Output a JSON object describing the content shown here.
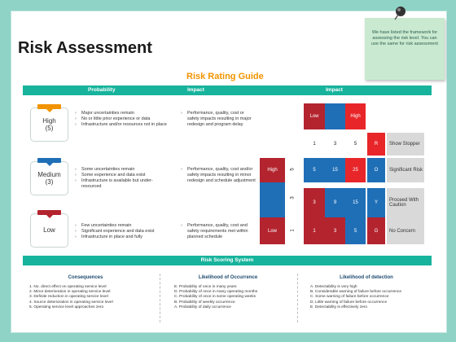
{
  "slide": {
    "title": "Risk Assessment",
    "note_text": "We have listed the framework for assessing the risk level. You can use the same for risk assessment"
  },
  "guide": {
    "title": "Risk Rating Guide",
    "header_probability": "Probability",
    "header_impact_1": "Impact",
    "header_impact_2": "Impact"
  },
  "levels": [
    {
      "name": "High",
      "count": "(5)",
      "color": "#f29400",
      "probability": [
        "Major uncertainties remain",
        "No or little prior experience or data",
        "Infrastructure and/or resources not in place"
      ],
      "impact": "Performance, quality, cost or safety impacts resulting in major redesign and program delay"
    },
    {
      "name": "Medium",
      "count": "(3)",
      "color": "#1f6fb7",
      "probability": [
        "Some uncertainties remain",
        "Some experience and data exist",
        "Infrastructure is available but under-resourced"
      ],
      "impact": "Performance, quality, cost and/or safety impacts resulting in minor redesign and schedule adjustment"
    },
    {
      "name": "Low",
      "count": "",
      "color": "#b3242f",
      "probability": [
        "Few uncertainties remain",
        "Significant experience and data exist",
        "Infrastructure in place and fully"
      ],
      "impact": "Performance, quality, cost and safety requirements met within planned schedule"
    }
  ],
  "matrix": {
    "top_labels": [
      "Low",
      "High"
    ],
    "col_numbers": [
      "1",
      "3",
      "5"
    ],
    "row_labels": [
      "High",
      "Low"
    ],
    "row_numbers": [
      "5",
      "3",
      "1"
    ],
    "rows": [
      {
        "values": [
          "5",
          "15",
          "25"
        ],
        "letter": "R",
        "meaning": "Show Stopper"
      },
      {
        "values": [
          "",
          "",
          ""
        ],
        "letter": "O",
        "meaning": "Significant Risk"
      },
      {
        "values": [
          "3",
          "9",
          "15"
        ],
        "letter": "Y",
        "meaning": "Proceed With Caution"
      },
      {
        "values": [
          "1",
          "3",
          "5"
        ],
        "letter": "G",
        "meaning": "No Concern"
      }
    ]
  },
  "scoring": {
    "title": "Risk Scoring System",
    "consequences_title": "Consequences",
    "consequences": [
      "1.  No. direct effect on operating service level",
      "2.  Minor deterioration in operating service level",
      "3.  Definite reduction in operating service level",
      "4.  Source deterioration in operating service level",
      "5.  Operating service level approaches zero"
    ],
    "likelihood_title": "Likelihood of Occurrence",
    "likelihood": [
      "E. Probability of once in many years",
      "D. Probability of once in many operating months",
      "C. Probability of once in some operating weeks",
      "B. Probability of weekly occurrence",
      "A. Probability of daily occurrence"
    ],
    "detection_title": "Likelihood of detection",
    "detection": [
      "A.  Detectability is very high",
      "B.  Considerable warning of failure before occurrence",
      "C.  Some warning of failure before occurrence",
      "D.  Little warning of failure before occurrence",
      "E.  Detectability is effectively zero"
    ]
  }
}
